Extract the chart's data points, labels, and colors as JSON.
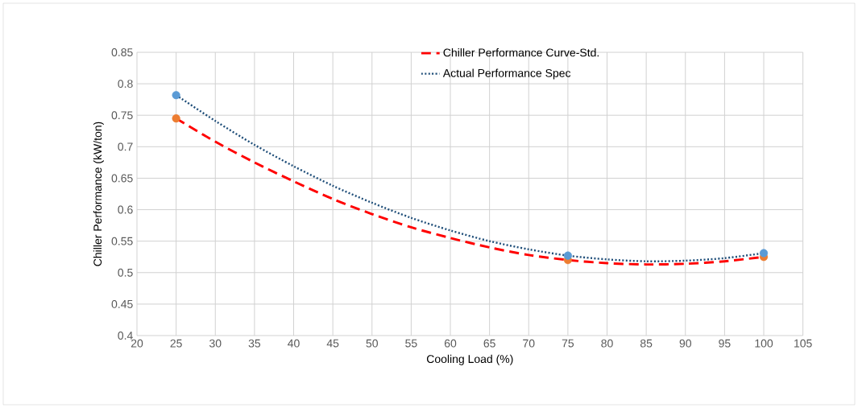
{
  "chart_data": {
    "type": "scatter",
    "xlabel": "Cooling Load (%)",
    "ylabel": "Chiller Performance (kW/ton)",
    "xlim": [
      20,
      105
    ],
    "xticks": [
      20,
      25,
      30,
      35,
      40,
      45,
      50,
      55,
      60,
      65,
      70,
      75,
      80,
      85,
      90,
      95,
      100,
      105
    ],
    "ylim": [
      0.4,
      0.85
    ],
    "yticks": [
      0.4,
      0.45,
      0.5,
      0.55,
      0.6,
      0.65,
      0.7,
      0.75,
      0.8,
      0.85
    ],
    "grid": true,
    "legend": "top",
    "series": [
      {
        "name": "Chiller Performance Curve-Std.",
        "type": "line",
        "color": "#ff0000",
        "line_style": "dashed",
        "marker": "none",
        "x": [
          25,
          30,
          35,
          40,
          45,
          50,
          55,
          60,
          65,
          70,
          75,
          80,
          85,
          90,
          95,
          100
        ],
        "values": [
          0.745,
          0.708,
          0.675,
          0.645,
          0.617,
          0.593,
          0.572,
          0.555,
          0.54,
          0.528,
          0.52,
          0.515,
          0.513,
          0.514,
          0.518,
          0.525
        ]
      },
      {
        "name": "Actual Performance  Spec",
        "type": "line",
        "color": "#1f4e79",
        "line_style": "dotted",
        "marker": "none",
        "x": [
          25,
          30,
          35,
          40,
          45,
          50,
          55,
          60,
          65,
          70,
          75,
          80,
          85,
          90,
          95,
          100
        ],
        "values": [
          0.782,
          0.741,
          0.703,
          0.669,
          0.638,
          0.611,
          0.587,
          0.567,
          0.55,
          0.537,
          0.527,
          0.521,
          0.518,
          0.519,
          0.523,
          0.531
        ]
      },
      {
        "color": "#ed7d31",
        "marker": "circle",
        "x": [
          25,
          75,
          100
        ],
        "values": [
          0.745,
          0.52,
          0.525
        ]
      },
      {
        "color": "#5b9bd5",
        "marker": "circle",
        "x": [
          25,
          75,
          100
        ],
        "values": [
          0.782,
          0.527,
          0.531
        ]
      }
    ]
  }
}
